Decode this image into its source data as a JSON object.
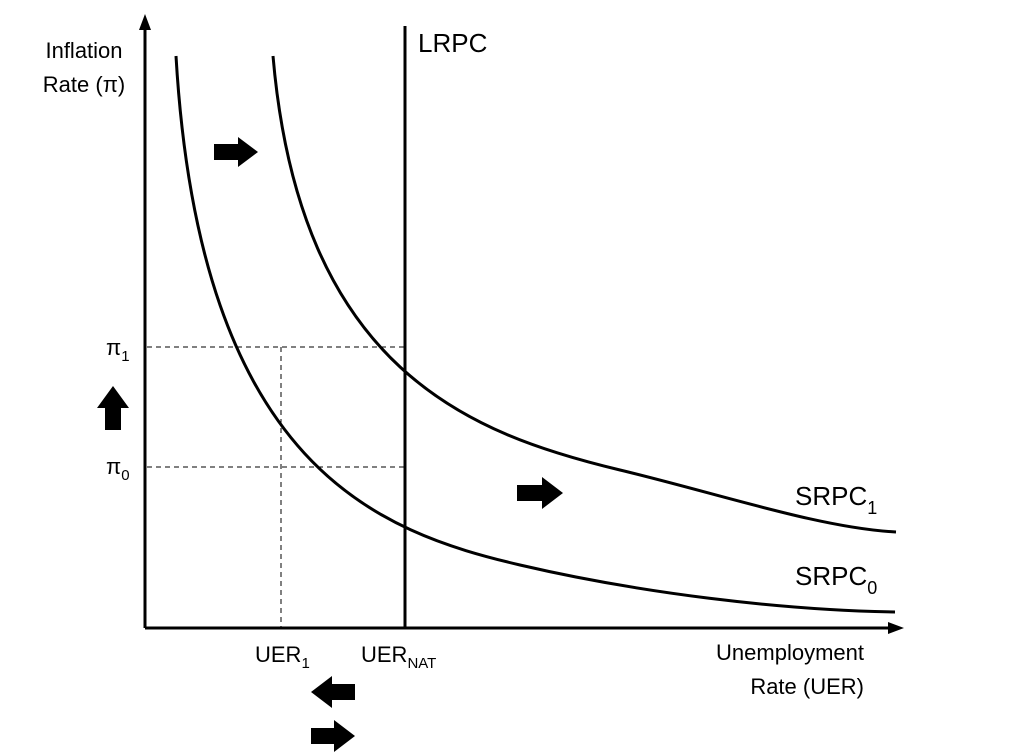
{
  "y_axis_label": [
    "Inflation",
    "Rate (π)"
  ],
  "x_axis_label": [
    "Unemployment",
    "Rate (UER)"
  ],
  "lrpc_label": "LRPC",
  "srpc1_label": {
    "base": "SRPC",
    "sub": "1"
  },
  "srpc0_label": {
    "base": "SRPC",
    "sub": "0"
  },
  "pi1_label": {
    "base": "π",
    "sub": "1"
  },
  "pi0_label": {
    "base": "π",
    "sub": "0"
  },
  "uer1_label": {
    "base": "UER",
    "sub": "1"
  },
  "uernat_label": {
    "base": "UER",
    "sub": "NAT"
  },
  "shift_arrows": [
    {
      "name": "shift-arrow-upper",
      "direction": "right"
    },
    {
      "name": "shift-arrow-middle",
      "direction": "right"
    },
    {
      "name": "inflation-up-arrow",
      "direction": "up"
    },
    {
      "name": "unemployment-left-arrow",
      "direction": "left"
    },
    {
      "name": "unemployment-right-arrow",
      "direction": "right"
    }
  ],
  "colors": {
    "ink": "#000000",
    "background": "#ffffff"
  }
}
